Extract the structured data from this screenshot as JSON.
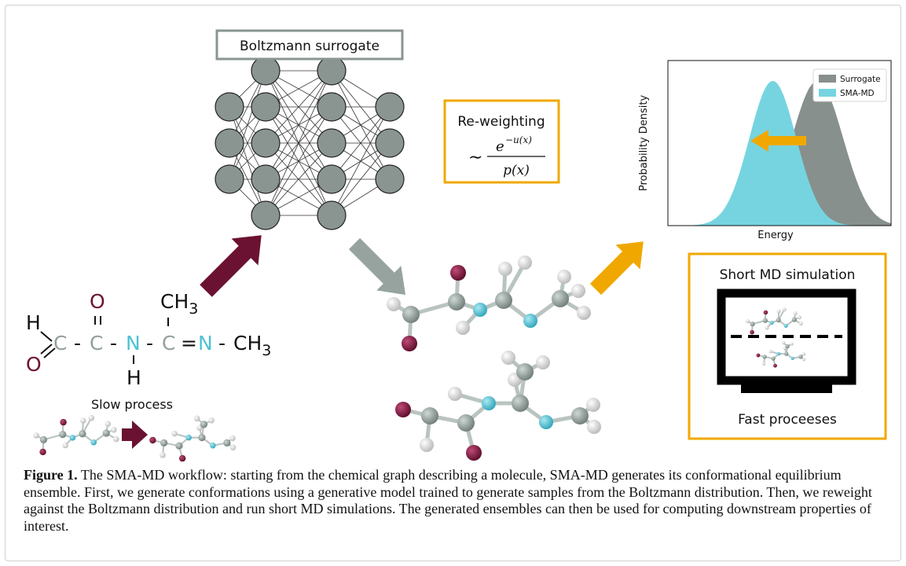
{
  "figure": {
    "surrogate_title": "Boltzmann surrogate",
    "reweighting": {
      "title": "Re-weighting",
      "approx": "∼",
      "numerator_base": "e",
      "numerator_exponent": "−u(x)",
      "denominator": "p(x)"
    },
    "molecule": {
      "H_top": "H",
      "O_left": "O",
      "C1": "C",
      "C2": "C",
      "O_top": "O",
      "N1": "N",
      "H_N": "H",
      "C3": "C",
      "CH3_top": "CH",
      "sub3_top": "3",
      "N2": "N",
      "CH3_right": "CH",
      "sub3_right": "3",
      "dash": "-",
      "double_bond": "="
    },
    "slow_label": "Slow process",
    "short_md_label": "Short MD simulation",
    "fast_label": "Fast proceeses",
    "colors": {
      "maroon": "#6b1232",
      "gray_arrow": "#96a39e",
      "orange": "#f0a800",
      "cyan": "#4ec1d4",
      "carbon": "#93a09a",
      "neuron": "#8a9591",
      "white_atom": "#e8e8e8"
    }
  },
  "chart_data": {
    "type": "area",
    "xlabel": "Energy",
    "ylabel": "Probability Density",
    "series": [
      {
        "name": "Surrogate",
        "color": "#87908c",
        "mean": 0.67,
        "sd": 0.115,
        "peak": 1.0
      },
      {
        "name": "SMA-MD",
        "color": "#76d4e0",
        "mean": 0.47,
        "sd": 0.105,
        "peak": 1.0
      }
    ],
    "xlim": [
      0,
      1
    ],
    "ylim": [
      0,
      1.05
    ],
    "grid": false,
    "legend_position": "top-right",
    "annotation": "arrow pointing left from Surrogate peak toward SMA-MD peak"
  },
  "caption": {
    "label": "Figure 1.",
    "text": " The SMA-MD workflow: starting from the chemical graph describing a molecule, SMA-MD generates its conformational equilibrium ensemble. First, we generate conformations using a generative model trained to generate samples from the Boltzmann distribution. Then, we reweight against the Boltzmann distribution and run short MD simulations. The generated ensembles can then be used for computing downstream properties of interest."
  }
}
